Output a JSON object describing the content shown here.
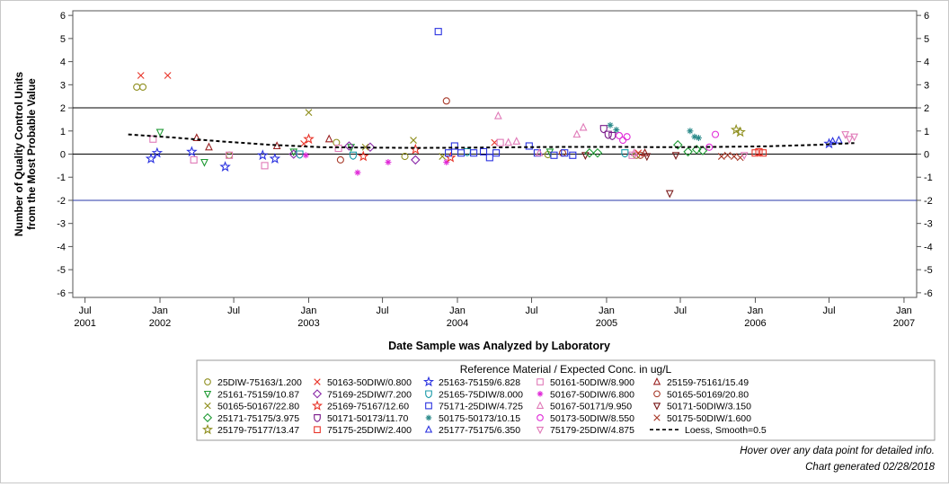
{
  "footer": {
    "hover_note": "Hover over any data point for detailed info.",
    "generated": "Chart generated 02/28/2018"
  },
  "chart_data": {
    "type": "scatter",
    "ylabel_line1": "Number of Quality Control Units",
    "ylabel_line2": "from the Most Probable Value",
    "xlabel": "Date Sample was Analyzed by Laboratory",
    "ylim": [
      -6.2,
      6.2
    ],
    "xlim": [
      "2001-06-01",
      "2007-02-01"
    ],
    "yticks": [
      -6,
      -5,
      -4,
      -3,
      -2,
      -1,
      0,
      1,
      2,
      3,
      4,
      5,
      6
    ],
    "ytick_labels": [
      "-6",
      "-5",
      "-4",
      "-3",
      "-2",
      "-1",
      "0",
      "1",
      "2",
      "3",
      "4",
      "5",
      "6"
    ],
    "xticks": [
      {
        "date": "2001-07-01",
        "line1": "Jul",
        "line2": "2001"
      },
      {
        "date": "2002-01-01",
        "line1": "Jan",
        "line2": "2002"
      },
      {
        "date": "2002-07-01",
        "line1": "Jul",
        "line2": ""
      },
      {
        "date": "2003-01-01",
        "line1": "Jan",
        "line2": "2003"
      },
      {
        "date": "2003-07-01",
        "line1": "Jul",
        "line2": ""
      },
      {
        "date": "2004-01-01",
        "line1": "Jan",
        "line2": "2004"
      },
      {
        "date": "2004-07-01",
        "line1": "Jul",
        "line2": ""
      },
      {
        "date": "2005-01-01",
        "line1": "Jan",
        "line2": "2005"
      },
      {
        "date": "2005-07-01",
        "line1": "Jul",
        "line2": ""
      },
      {
        "date": "2006-01-01",
        "line1": "Jan",
        "line2": "2006"
      },
      {
        "date": "2006-07-01",
        "line1": "Jul",
        "line2": ""
      },
      {
        "date": "2007-01-01",
        "line1": "Jan",
        "line2": "2007"
      }
    ],
    "reference_lines": [
      {
        "y": 2,
        "color": "#000000"
      },
      {
        "y": 0,
        "color": "#000000"
      },
      {
        "y": -2,
        "color": "#2a3aa8"
      }
    ],
    "legend_title": "Reference Material / Expected Conc. in ug/L",
    "legend_position": "bottom",
    "series": [
      {
        "name": "25DIW-75163/1.200",
        "marker": "circle",
        "color": "#8f8f1f",
        "points": [
          [
            "2001-11-05",
            2.9
          ],
          [
            "2001-11-20",
            2.9
          ],
          [
            "2002-06-20",
            -0.05
          ],
          [
            "2003-03-10",
            0.5
          ],
          [
            "2003-08-25",
            -0.1
          ],
          [
            "2004-08-10",
            -0.02
          ],
          [
            "2005-03-15",
            -0.05
          ]
        ]
      },
      {
        "name": "50163-50DIW/0.800",
        "marker": "x",
        "color": "#e8352a",
        "points": [
          [
            "2001-11-15",
            3.4
          ],
          [
            "2002-01-20",
            3.4
          ],
          [
            "2002-12-20",
            0.45
          ],
          [
            "2004-04-01",
            0.5
          ],
          [
            "2005-03-20",
            0.05
          ]
        ]
      },
      {
        "name": "25163-75159/6.828",
        "marker": "star",
        "color": "#2a32e0",
        "points": [
          [
            "2001-12-10",
            -0.2
          ],
          [
            "2001-12-25",
            0.05
          ],
          [
            "2002-03-20",
            0.1
          ],
          [
            "2002-06-10",
            -0.55
          ],
          [
            "2002-09-10",
            -0.05
          ],
          [
            "2002-10-10",
            -0.2
          ],
          [
            "2006-07-01",
            0.45
          ]
        ]
      },
      {
        "name": "50161-50DIW/8.900",
        "marker": "square",
        "color": "#e07ab8",
        "points": [
          [
            "2001-12-15",
            0.65
          ],
          [
            "2002-03-25",
            -0.25
          ],
          [
            "2002-06-20",
            -0.05
          ],
          [
            "2002-09-15",
            -0.5
          ],
          [
            "2003-03-15",
            0.25
          ],
          [
            "2004-04-15",
            0.5
          ],
          [
            "2005-03-05",
            -0.05
          ]
        ]
      },
      {
        "name": "25159-75161/15.49",
        "marker": "triangle",
        "color": "#9a2222",
        "points": [
          [
            "2002-04-01",
            0.7
          ],
          [
            "2002-05-01",
            0.3
          ],
          [
            "2002-10-15",
            0.35
          ],
          [
            "2003-02-20",
            0.65
          ],
          [
            "2005-04-05",
            0.05
          ]
        ]
      },
      {
        "name": "25161-75159/10.87",
        "marker": "tridown",
        "color": "#1f9a34",
        "points": [
          [
            "2002-01-01",
            0.95
          ],
          [
            "2002-04-20",
            -0.35
          ],
          [
            "2002-11-25",
            0.1
          ],
          [
            "2003-04-15",
            0.3
          ],
          [
            "2004-08-15",
            0.1
          ]
        ]
      },
      {
        "name": "75169-25DIW/7.200",
        "marker": "diamond",
        "color": "#8a2aa8",
        "points": [
          [
            "2002-11-25",
            0.0
          ],
          [
            "2003-04-10",
            0.35
          ],
          [
            "2003-06-01",
            0.3
          ],
          [
            "2003-09-20",
            -0.25
          ]
        ]
      },
      {
        "name": "25165-75DIW/8.000",
        "marker": "shield",
        "color": "#1a9aa8",
        "points": [
          [
            "2002-12-10",
            0.0
          ],
          [
            "2003-04-20",
            -0.05
          ],
          [
            "2004-01-25",
            0.1
          ],
          [
            "2005-02-15",
            0.05
          ]
        ]
      },
      {
        "name": "50167-50DIW/6.800",
        "marker": "asterisk",
        "color": "#e02ad8",
        "points": [
          [
            "2002-12-25",
            -0.05
          ],
          [
            "2003-05-01",
            -0.8
          ],
          [
            "2003-07-15",
            -0.35
          ],
          [
            "2003-12-05",
            -0.35
          ]
        ]
      },
      {
        "name": "50165-50169/20.80",
        "marker": "circle",
        "color": "#a83a2a",
        "points": [
          [
            "2003-03-20",
            -0.25
          ],
          [
            "2003-12-05",
            2.3
          ],
          [
            "2004-09-15",
            0.05
          ],
          [
            "2005-03-25",
            -0.05
          ]
        ]
      },
      {
        "name": "50165-50167/22.80",
        "marker": "x",
        "color": "#8f8f1f",
        "points": [
          [
            "2003-01-01",
            1.8
          ],
          [
            "2003-05-20",
            0.3
          ],
          [
            "2003-09-15",
            0.6
          ],
          [
            "2003-11-25",
            -0.1
          ]
        ]
      },
      {
        "name": "25169-75167/12.60",
        "marker": "star",
        "color": "#e8352a",
        "points": [
          [
            "2003-01-01",
            0.65
          ],
          [
            "2003-05-15",
            -0.1
          ],
          [
            "2003-09-20",
            0.2
          ],
          [
            "2003-12-15",
            -0.15
          ]
        ]
      },
      {
        "name": "75171-25DIW/4.725",
        "marker": "square",
        "color": "#2a32e0",
        "points": [
          [
            "2003-11-15",
            5.3
          ],
          [
            "2003-12-10",
            0.05
          ],
          [
            "2003-12-25",
            0.35
          ],
          [
            "2004-01-10",
            0.05
          ],
          [
            "2004-02-10",
            0.05
          ],
          [
            "2004-03-05",
            0.1
          ],
          [
            "2004-03-20",
            -0.15
          ],
          [
            "2004-04-05",
            0.05
          ],
          [
            "2004-06-25",
            0.35
          ],
          [
            "2004-07-15",
            0.05
          ],
          [
            "2004-08-25",
            -0.05
          ],
          [
            "2004-09-20",
            0.05
          ],
          [
            "2004-10-10",
            -0.05
          ]
        ]
      },
      {
        "name": "50167-50171/9.950",
        "marker": "triangle",
        "color": "#e07ab8",
        "points": [
          [
            "2004-04-10",
            1.65
          ],
          [
            "2004-05-05",
            0.5
          ],
          [
            "2004-05-25",
            0.55
          ],
          [
            "2004-07-20",
            0.05
          ],
          [
            "2004-10-20",
            0.85
          ],
          [
            "2004-11-05",
            1.15
          ],
          [
            "2005-03-10",
            0.05
          ]
        ]
      },
      {
        "name": "50171-50DIW/3.150",
        "marker": "tridown",
        "color": "#7a1a1a",
        "points": [
          [
            "2004-11-10",
            -0.05
          ],
          [
            "2005-04-10",
            -0.1
          ],
          [
            "2005-06-05",
            -1.7
          ],
          [
            "2005-06-20",
            -0.05
          ]
        ]
      },
      {
        "name": "25171-75175/3.975",
        "marker": "diamond",
        "color": "#1f9a34",
        "points": [
          [
            "2004-11-20",
            0.05
          ],
          [
            "2004-12-10",
            0.05
          ],
          [
            "2005-06-25",
            0.4
          ],
          [
            "2005-07-20",
            0.1
          ],
          [
            "2005-08-10",
            0.2
          ],
          [
            "2005-08-25",
            0.15
          ]
        ]
      },
      {
        "name": "50171-50173/11.70",
        "marker": "shield",
        "color": "#7a1a8a",
        "points": [
          [
            "2004-12-25",
            1.1
          ],
          [
            "2005-01-05",
            0.85
          ],
          [
            "2005-01-15",
            0.8
          ]
        ]
      },
      {
        "name": "50175-50173/10.15",
        "marker": "asterisk",
        "color": "#2a8a8a",
        "points": [
          [
            "2005-01-10",
            1.25
          ],
          [
            "2005-01-25",
            1.05
          ],
          [
            "2005-07-25",
            1.0
          ],
          [
            "2005-08-05",
            0.75
          ],
          [
            "2005-08-15",
            0.7
          ]
        ]
      },
      {
        "name": "50173-50DIW/8.550",
        "marker": "circle",
        "color": "#e02ad8",
        "points": [
          [
            "2005-02-01",
            0.8
          ],
          [
            "2005-02-10",
            0.6
          ],
          [
            "2005-02-20",
            0.75
          ],
          [
            "2005-09-10",
            0.3
          ],
          [
            "2005-09-25",
            0.85
          ]
        ]
      },
      {
        "name": "50175-50DIW/1.600",
        "marker": "x",
        "color": "#a83a2a",
        "points": [
          [
            "2005-10-10",
            -0.1
          ],
          [
            "2005-10-25",
            -0.05
          ],
          [
            "2005-11-10",
            -0.1
          ],
          [
            "2005-11-25",
            -0.15
          ]
        ]
      },
      {
        "name": "25179-75177/13.47",
        "marker": "star",
        "color": "#8f8f1f",
        "points": [
          [
            "2005-11-15",
            1.05
          ],
          [
            "2005-11-25",
            0.95
          ]
        ]
      },
      {
        "name": "75175-25DIW/2.400",
        "marker": "square",
        "color": "#e8352a",
        "points": [
          [
            "2006-01-01",
            0.05
          ],
          [
            "2006-01-10",
            0.1
          ],
          [
            "2006-01-20",
            0.05
          ]
        ]
      },
      {
        "name": "25177-75175/6.350",
        "marker": "triangle",
        "color": "#2a32e0",
        "points": [
          [
            "2006-07-10",
            0.55
          ],
          [
            "2006-07-25",
            0.6
          ]
        ]
      },
      {
        "name": "75179-25DIW/4.875",
        "marker": "tridown",
        "color": "#e07ab8",
        "points": [
          [
            "2005-12-05",
            -0.05
          ],
          [
            "2006-08-10",
            0.85
          ],
          [
            "2006-08-20",
            0.65
          ],
          [
            "2006-09-01",
            0.75
          ]
        ]
      },
      {
        "name": "Loess, Smooth=0.5",
        "marker": "dashline",
        "color": "#000000",
        "points": [
          [
            "2001-10-15",
            0.85
          ],
          [
            "2002-02-01",
            0.72
          ],
          [
            "2002-06-01",
            0.55
          ],
          [
            "2002-10-01",
            0.4
          ],
          [
            "2003-02-01",
            0.3
          ],
          [
            "2003-06-01",
            0.28
          ],
          [
            "2003-10-01",
            0.27
          ],
          [
            "2004-02-01",
            0.28
          ],
          [
            "2004-06-01",
            0.3
          ],
          [
            "2004-10-01",
            0.31
          ],
          [
            "2005-02-01",
            0.31
          ],
          [
            "2005-06-01",
            0.3
          ],
          [
            "2005-10-01",
            0.31
          ],
          [
            "2006-02-01",
            0.34
          ],
          [
            "2006-06-01",
            0.4
          ],
          [
            "2006-09-01",
            0.48
          ]
        ]
      }
    ]
  }
}
